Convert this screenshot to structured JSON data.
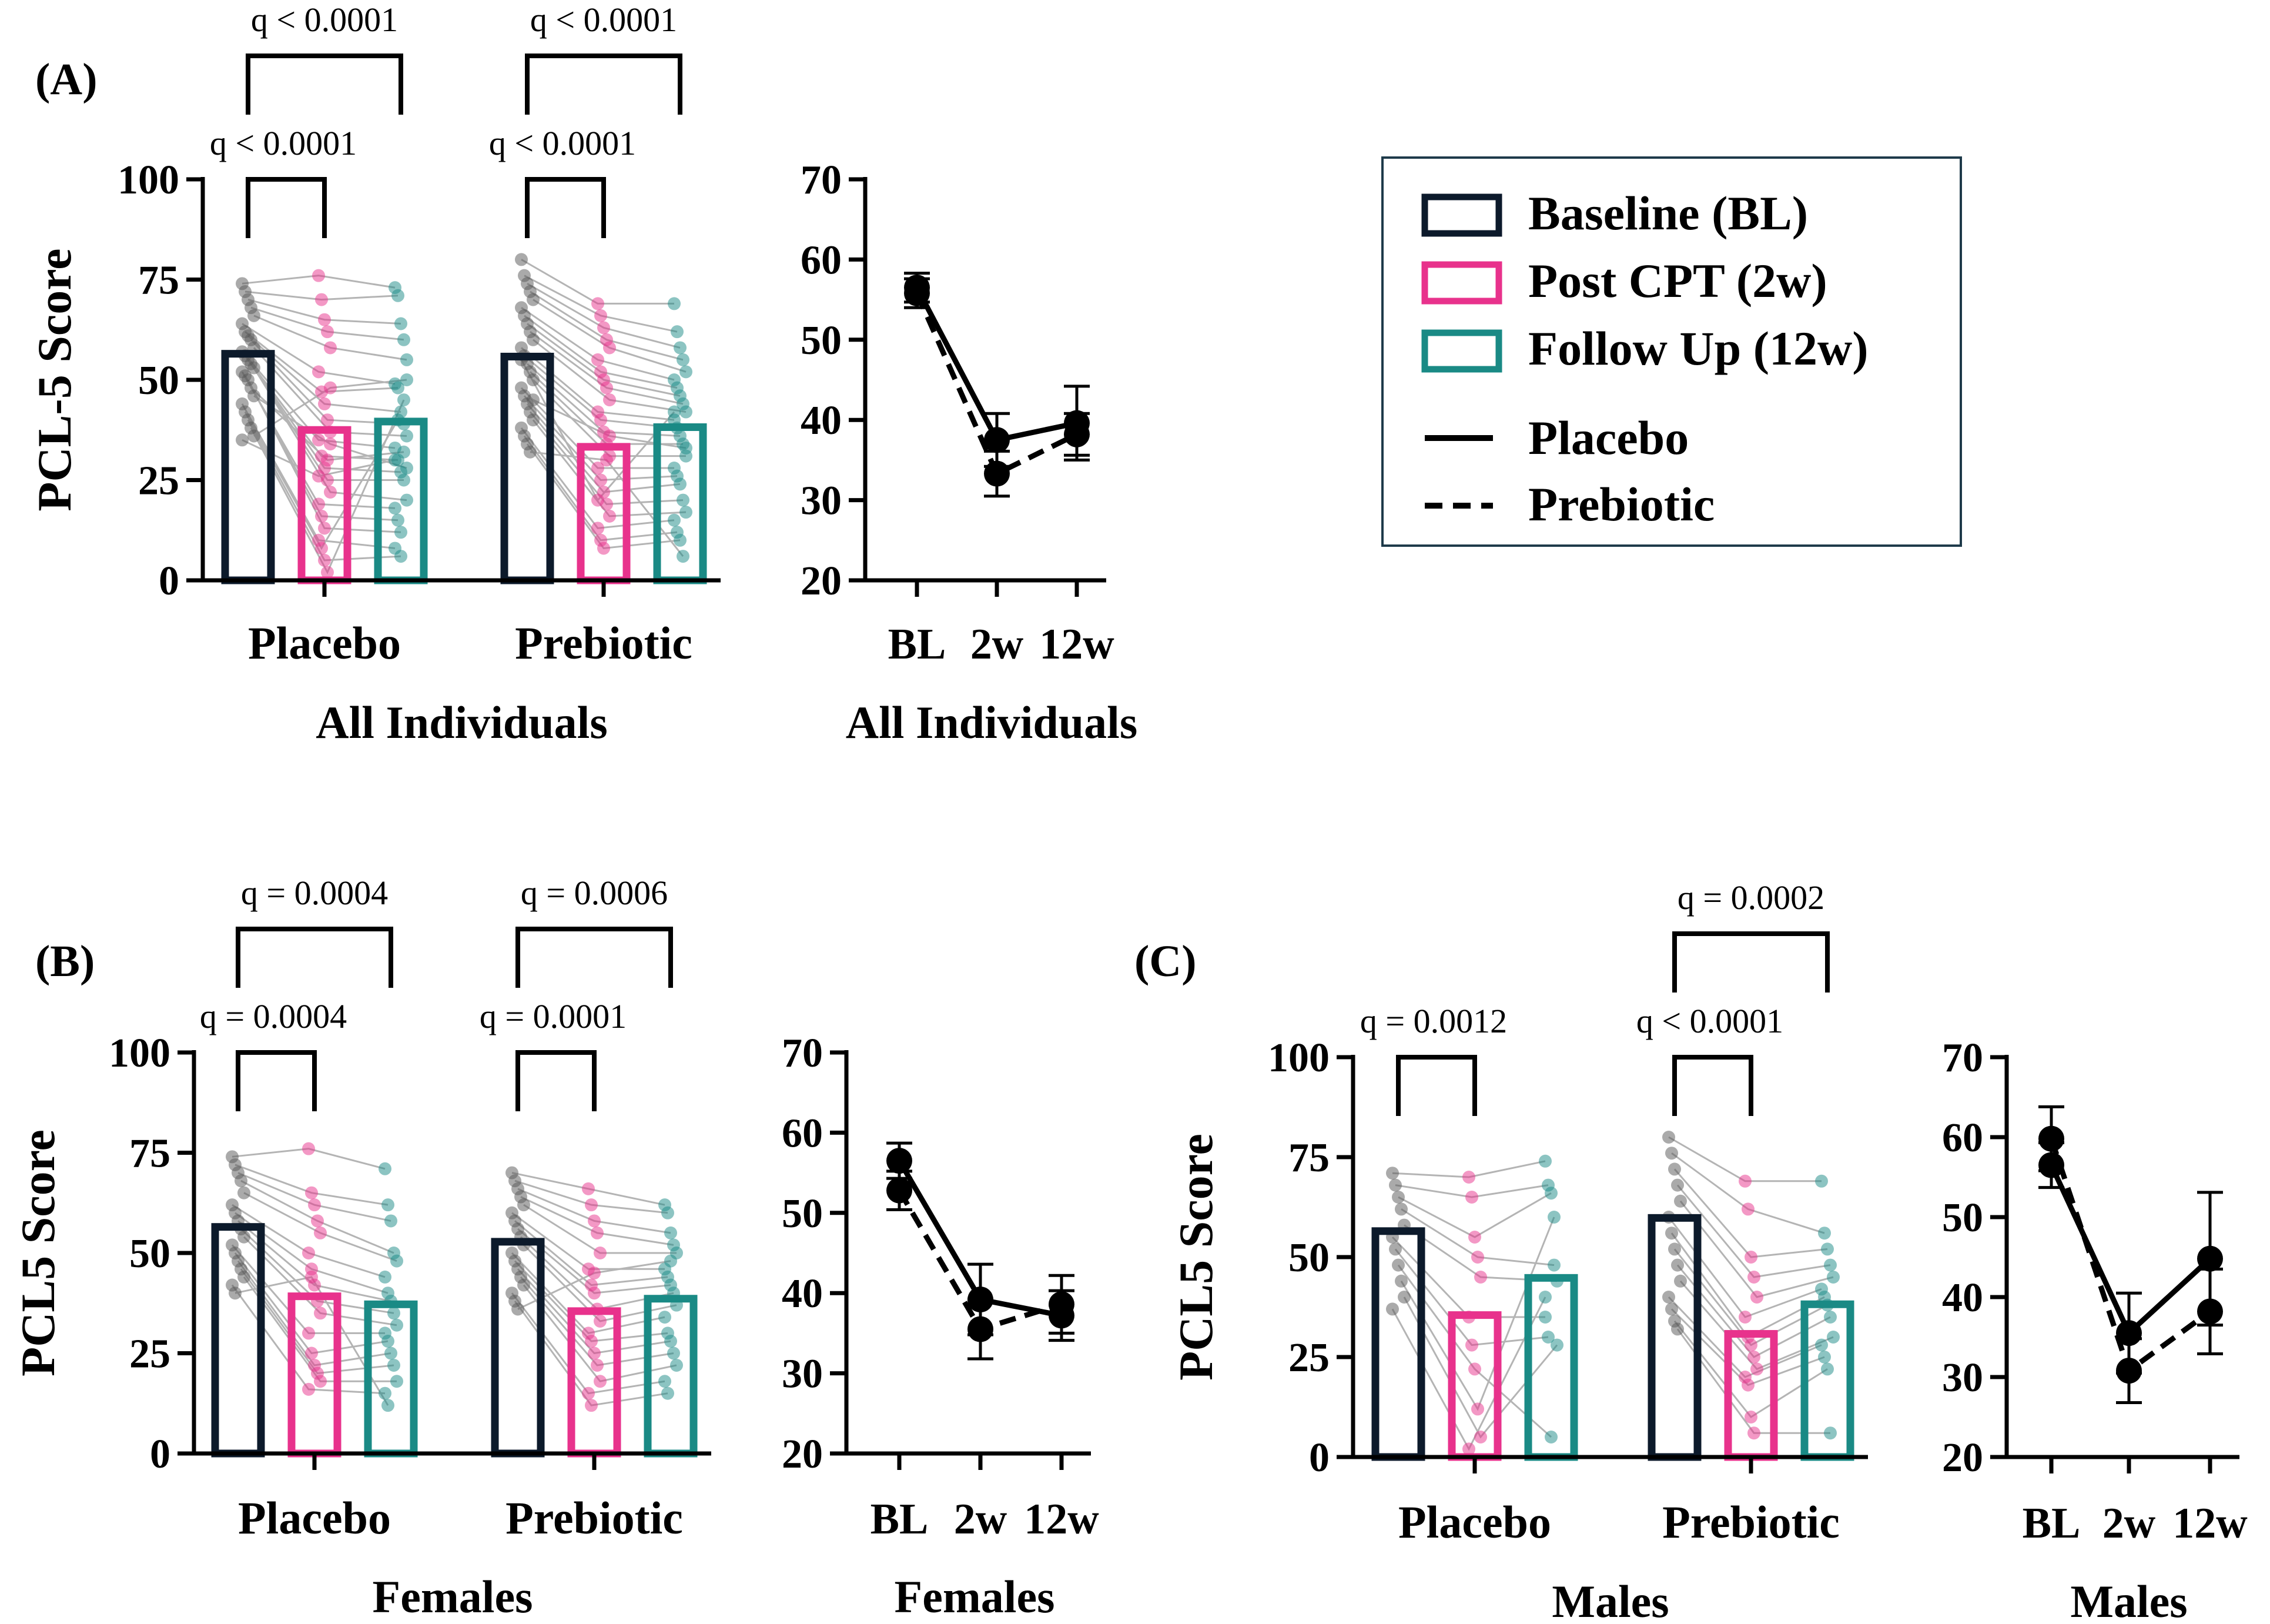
{
  "colors": {
    "baseline": "#0c1a2b",
    "post": "#e8328c",
    "follow": "#1a8a85",
    "dots_baseline": "#555555",
    "lines": "#b4b4b4",
    "axis": "#000000"
  },
  "legend": {
    "items": [
      {
        "label": "Baseline (BL)",
        "color_key": "baseline"
      },
      {
        "label": "Post CPT (2w)",
        "color_key": "post"
      },
      {
        "label": "Follow Up (12w)",
        "color_key": "follow"
      }
    ],
    "lines": [
      {
        "label": "Placebo",
        "style": "solid"
      },
      {
        "label": "Prebiotic",
        "style": "dashed"
      }
    ]
  },
  "chart_data": [
    {
      "id": "A-bar",
      "panel_label": "(A)",
      "type": "bar",
      "ylabel": "PCL-5 Score",
      "xlabel": "All Individuals",
      "ylim": [
        0,
        100
      ],
      "yticks": [
        0,
        25,
        50,
        75,
        100
      ],
      "groups": [
        "Placebo",
        "Prebiotic"
      ],
      "series": [
        {
          "name": "Baseline (BL)",
          "values": [
            56.5,
            55.8
          ]
        },
        {
          "name": "Post CPT (2w)",
          "values": [
            37.5,
            33.3
          ]
        },
        {
          "name": "Follow Up (12w)",
          "values": [
            39.6,
            38.2
          ]
        }
      ],
      "annotations": [
        {
          "group": 0,
          "from": 0,
          "to": 1,
          "level": 1,
          "text": "q < 0.0001"
        },
        {
          "group": 0,
          "from": 0,
          "to": 2,
          "level": 2,
          "text": "q < 0.0001"
        },
        {
          "group": 1,
          "from": 0,
          "to": 1,
          "level": 1,
          "text": "q < 0.0001"
        },
        {
          "group": 1,
          "from": 0,
          "to": 2,
          "level": 2,
          "text": "q < 0.0001"
        }
      ],
      "individuals": [
        [
          [
            74,
            76,
            73
          ],
          [
            72,
            70,
            71
          ],
          [
            70,
            65,
            64
          ],
          [
            68,
            62,
            60
          ],
          [
            66,
            58,
            55
          ],
          [
            64,
            52,
            49
          ],
          [
            62,
            47,
            48
          ],
          [
            61,
            44,
            42
          ],
          [
            60,
            40,
            39
          ],
          [
            58,
            37,
            36
          ],
          [
            57,
            35,
            33
          ],
          [
            56,
            31,
            30
          ],
          [
            55,
            28,
            27
          ],
          [
            54,
            25,
            25
          ],
          [
            53,
            22,
            20
          ],
          [
            52,
            19,
            18
          ],
          [
            51,
            16,
            15
          ],
          [
            50,
            13,
            12
          ],
          [
            48,
            30,
            32
          ],
          [
            46,
            34,
            28
          ],
          [
            44,
            10,
            8
          ],
          [
            42,
            8,
            40
          ],
          [
            40,
            5,
            6
          ],
          [
            38,
            2,
            45
          ],
          [
            36,
            48,
            50
          ],
          [
            35,
            26,
            30
          ]
        ],
        [
          [
            80,
            69,
            69
          ],
          [
            76,
            66,
            62
          ],
          [
            74,
            63,
            58
          ],
          [
            72,
            60,
            55
          ],
          [
            70,
            58,
            52
          ],
          [
            68,
            55,
            50
          ],
          [
            66,
            52,
            48
          ],
          [
            64,
            50,
            46
          ],
          [
            62,
            48,
            44
          ],
          [
            60,
            45,
            42
          ],
          [
            58,
            42,
            40
          ],
          [
            56,
            40,
            38
          ],
          [
            54,
            37,
            36
          ],
          [
            52,
            34,
            34
          ],
          [
            50,
            31,
            31
          ],
          [
            48,
            28,
            28
          ],
          [
            46,
            25,
            26
          ],
          [
            44,
            22,
            24
          ],
          [
            42,
            19,
            20
          ],
          [
            40,
            16,
            17
          ],
          [
            38,
            13,
            15
          ],
          [
            36,
            10,
            12
          ],
          [
            34,
            8,
            10
          ],
          [
            32,
            30,
            6
          ],
          [
            45,
            36,
            33
          ],
          [
            55,
            20,
            42
          ]
        ]
      ]
    },
    {
      "id": "A-line",
      "type": "line",
      "xlabel": "All Individuals",
      "categories": [
        "BL",
        "2w",
        "12w"
      ],
      "ylim": [
        20,
        70
      ],
      "yticks": [
        20,
        30,
        40,
        50,
        60,
        70
      ],
      "series": [
        {
          "name": "Placebo",
          "style": "solid",
          "values": [
            56.5,
            37.5,
            39.6
          ],
          "err": [
            1.8,
            3.3,
            4.6
          ]
        },
        {
          "name": "Prebiotic",
          "style": "dashed",
          "values": [
            55.8,
            33.3,
            38.2
          ],
          "err": [
            1.8,
            2.8,
            2.6
          ]
        }
      ]
    },
    {
      "id": "B-bar",
      "panel_label": "(B)",
      "type": "bar",
      "ylabel": "PCL5 Score",
      "xlabel": "Females",
      "ylim": [
        0,
        100
      ],
      "yticks": [
        0,
        25,
        50,
        75,
        100
      ],
      "groups": [
        "Placebo",
        "Prebiotic"
      ],
      "series": [
        {
          "name": "Baseline (BL)",
          "values": [
            56.5,
            52.8
          ]
        },
        {
          "name": "Post CPT (2w)",
          "values": [
            39.2,
            35.5
          ]
        },
        {
          "name": "Follow Up (12w)",
          "values": [
            37.2,
            38.6
          ]
        }
      ],
      "annotations": [
        {
          "group": 0,
          "from": 0,
          "to": 1,
          "level": 1,
          "text": "q = 0.0004"
        },
        {
          "group": 0,
          "from": 0,
          "to": 2,
          "level": 2,
          "text": "q = 0.0004"
        },
        {
          "group": 1,
          "from": 0,
          "to": 1,
          "level": 1,
          "text": "q = 0.0001"
        },
        {
          "group": 1,
          "from": 0,
          "to": 2,
          "level": 2,
          "text": "q = 0.0006"
        }
      ],
      "individuals": [
        [
          [
            74,
            76,
            71
          ],
          [
            72,
            65,
            62
          ],
          [
            70,
            62,
            58
          ],
          [
            68,
            58,
            50
          ],
          [
            65,
            55,
            48
          ],
          [
            62,
            50,
            44
          ],
          [
            60,
            46,
            40
          ],
          [
            58,
            42,
            38
          ],
          [
            56,
            38,
            35
          ],
          [
            54,
            35,
            32
          ],
          [
            52,
            30,
            30
          ],
          [
            50,
            25,
            28
          ],
          [
            48,
            22,
            25
          ],
          [
            46,
            20,
            22
          ],
          [
            44,
            18,
            18
          ],
          [
            42,
            16,
            15
          ],
          [
            40,
            44,
            12
          ]
        ],
        [
          [
            70,
            66,
            62
          ],
          [
            68,
            62,
            60
          ],
          [
            66,
            58,
            55
          ],
          [
            64,
            55,
            52
          ],
          [
            62,
            50,
            50
          ],
          [
            60,
            46,
            46
          ],
          [
            58,
            42,
            44
          ],
          [
            56,
            40,
            42
          ],
          [
            54,
            36,
            40
          ],
          [
            52,
            33,
            37
          ],
          [
            50,
            30,
            34
          ],
          [
            48,
            28,
            30
          ],
          [
            46,
            25,
            28
          ],
          [
            44,
            22,
            25
          ],
          [
            42,
            18,
            22
          ],
          [
            40,
            15,
            18
          ],
          [
            38,
            12,
            15
          ],
          [
            36,
            45,
            48
          ]
        ]
      ]
    },
    {
      "id": "B-line",
      "type": "line",
      "xlabel": "Females",
      "categories": [
        "BL",
        "2w",
        "12w"
      ],
      "ylim": [
        20,
        70
      ],
      "yticks": [
        20,
        30,
        40,
        50,
        60,
        70
      ],
      "series": [
        {
          "name": "Placebo",
          "style": "solid",
          "values": [
            56.5,
            39.2,
            37.2
          ],
          "err": [
            2.2,
            4.4,
            3.1
          ]
        },
        {
          "name": "Prebiotic",
          "style": "dashed",
          "values": [
            52.8,
            35.5,
            38.6
          ],
          "err": [
            2.4,
            3.7,
            3.6
          ]
        }
      ]
    },
    {
      "id": "C-bar",
      "panel_label": "(C)",
      "type": "bar",
      "ylabel": "PCL5 Score",
      "xlabel": "Males",
      "ylim": [
        0,
        100
      ],
      "yticks": [
        0,
        25,
        50,
        75,
        100
      ],
      "groups": [
        "Placebo",
        "Prebiotic"
      ],
      "series": [
        {
          "name": "Baseline (BL)",
          "values": [
            56.5,
            59.8
          ]
        },
        {
          "name": "Post CPT (2w)",
          "values": [
            35.5,
            30.8
          ]
        },
        {
          "name": "Follow Up (12w)",
          "values": [
            44.8,
            38.2
          ]
        }
      ],
      "annotations": [
        {
          "group": 0,
          "from": 0,
          "to": 1,
          "level": 1,
          "text": "q = 0.0012"
        },
        {
          "group": 1,
          "from": 0,
          "to": 1,
          "level": 1,
          "text": "q < 0.0001"
        },
        {
          "group": 1,
          "from": 0,
          "to": 2,
          "level": 2,
          "text": "q = 0.0002"
        }
      ],
      "individuals": [
        [
          [
            71,
            70,
            74
          ],
          [
            68,
            65,
            68
          ],
          [
            65,
            55,
            66
          ],
          [
            62,
            50,
            48
          ],
          [
            58,
            45,
            44
          ],
          [
            55,
            35,
            35
          ],
          [
            52,
            28,
            30
          ],
          [
            48,
            22,
            5
          ],
          [
            44,
            12,
            60
          ],
          [
            40,
            5,
            28
          ],
          [
            37,
            2,
            40
          ]
        ],
        [
          [
            80,
            69,
            69
          ],
          [
            76,
            62,
            56
          ],
          [
            72,
            50,
            52
          ],
          [
            68,
            45,
            48
          ],
          [
            64,
            40,
            45
          ],
          [
            60,
            35,
            42
          ],
          [
            56,
            30,
            40
          ],
          [
            52,
            28,
            38
          ],
          [
            48,
            25,
            35
          ],
          [
            44,
            22,
            30
          ],
          [
            40,
            20,
            28
          ],
          [
            37,
            18,
            25
          ],
          [
            34,
            10,
            22
          ],
          [
            32,
            6,
            6
          ]
        ]
      ]
    },
    {
      "id": "C-line",
      "type": "line",
      "xlabel": "Males",
      "categories": [
        "BL",
        "2w",
        "12w"
      ],
      "ylim": [
        20,
        70
      ],
      "yticks": [
        20,
        30,
        40,
        50,
        60,
        70
      ],
      "series": [
        {
          "name": "Placebo",
          "style": "solid",
          "values": [
            56.5,
            35.5,
            44.8
          ],
          "err": [
            2.8,
            5.0,
            8.3
          ]
        },
        {
          "name": "Prebiotic",
          "style": "dashed",
          "values": [
            59.8,
            30.8,
            38.2
          ],
          "err": [
            4.0,
            4.0,
            5.3
          ]
        }
      ]
    }
  ]
}
